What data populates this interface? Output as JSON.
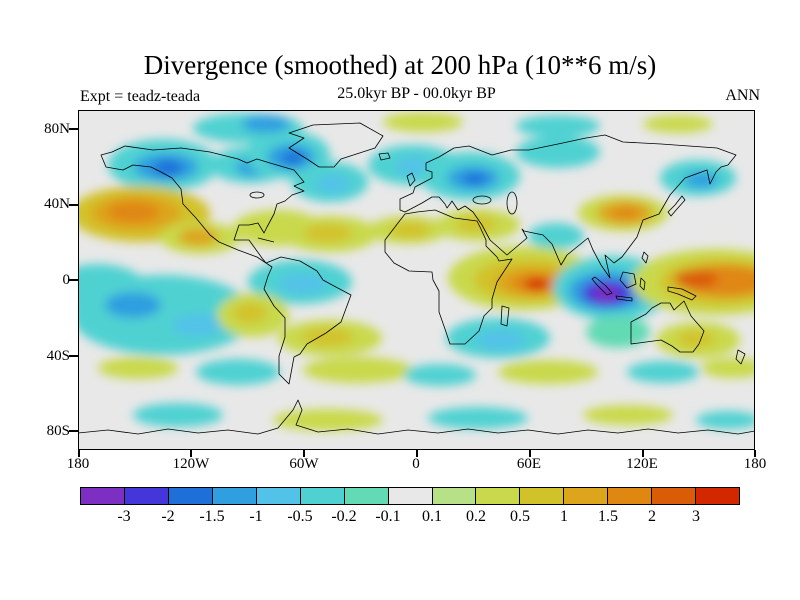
{
  "header": {
    "title": "Divergence (smoothed) at 200 hPa (10**6 m/s)",
    "experiment": "Expt = teadz-teada",
    "period": "25.0kyr BP - 00.0kyr BP",
    "season": "ANN"
  },
  "map": {
    "background": "#e8e8e8",
    "coastline_color": "#000000",
    "lat_ticks": [
      "80N",
      "40N",
      "0",
      "40S",
      "80S"
    ],
    "lon_ticks": [
      "180",
      "120W",
      "60W",
      "0",
      "60E",
      "120E",
      "180"
    ]
  },
  "colorbar": {
    "labels": [
      "-3",
      "-2",
      "-1.5",
      "-1",
      "-0.5",
      "-0.2",
      "-0.1",
      "0.1",
      "0.2",
      "0.5",
      "1",
      "1.5",
      "2",
      "3"
    ],
    "colors": [
      "#7c2fc2",
      "#4436d9",
      "#1f6fd9",
      "#2f9fe0",
      "#52c2e8",
      "#4fd1d2",
      "#62dab4",
      "#e8e8e8",
      "#b6e187",
      "#c9d94b",
      "#d2c22a",
      "#dca51c",
      "#e08712",
      "#db5c07",
      "#d32700"
    ]
  },
  "chart_data": {
    "type": "heatmap",
    "subtype": "filled-contour world map",
    "title": "Divergence (smoothed) at 200 hPa (10**6 m/s)",
    "subtitle": "25.0kyr BP - 00.0kyr BP",
    "experiment": "teadz-teada",
    "season": "ANN",
    "units": "10**6 m/s",
    "projection": "equirectangular, lon -180..180, lat -90..90",
    "x_tick_labels": [
      "180",
      "120W",
      "60W",
      "0",
      "60E",
      "120E",
      "180"
    ],
    "y_tick_labels": [
      "80N",
      "40N",
      "0",
      "40S",
      "80S"
    ],
    "contour_levels": [
      -3,
      -2,
      -1.5,
      -1,
      -0.5,
      -0.2,
      -0.1,
      0.1,
      0.2,
      0.5,
      1,
      1.5,
      2,
      3
    ],
    "palette": [
      "#7c2fc2",
      "#4436d9",
      "#1f6fd9",
      "#2f9fe0",
      "#52c2e8",
      "#4fd1d2",
      "#62dab4",
      "#e8e8e8",
      "#b6e187",
      "#c9d94b",
      "#d2c22a",
      "#dca51c",
      "#e08712",
      "#db5c07",
      "#d32700"
    ],
    "anomaly_centers": [
      {
        "lon": 100,
        "lat": -8,
        "value": "< -3",
        "desc": "strongest negative center (purple) over Indonesia / eastern Indian Ocean"
      },
      {
        "lon": 60,
        "lat": -3,
        "value": "> 3",
        "desc": "strongest positive center (red) over western equatorial Indian Ocean / East Africa"
      },
      {
        "lon": 150,
        "lat": -1,
        "value": "2 to 3",
        "desc": "broad positive band across the western equatorial Pacific to the dateline"
      },
      {
        "lon": -150,
        "lat": 35,
        "value": "1.5 to 2",
        "desc": "positive center in the northeast Pacific"
      },
      {
        "lon": -140,
        "lat": 55,
        "value": "-1.5 to -1",
        "desc": "negative center over the Gulf of Alaska"
      },
      {
        "lon": -42,
        "lat": 66,
        "value": "-1.5",
        "desc": "negative center near Greenland"
      },
      {
        "lon": 70,
        "lat": 45,
        "value": "-1.5",
        "desc": "negative center over central Asia"
      },
      {
        "lon": 120,
        "lat": 32,
        "value": "1.5",
        "desc": "positive center over East Asia / Japan region"
      },
      {
        "lon": -160,
        "lat": -15,
        "value": "-1",
        "desc": "broad negative region over the south-central Pacific"
      },
      {
        "lon": -25,
        "lat": 0,
        "value": "-0.5",
        "desc": "negative band over the equatorial Atlantic"
      }
    ]
  }
}
